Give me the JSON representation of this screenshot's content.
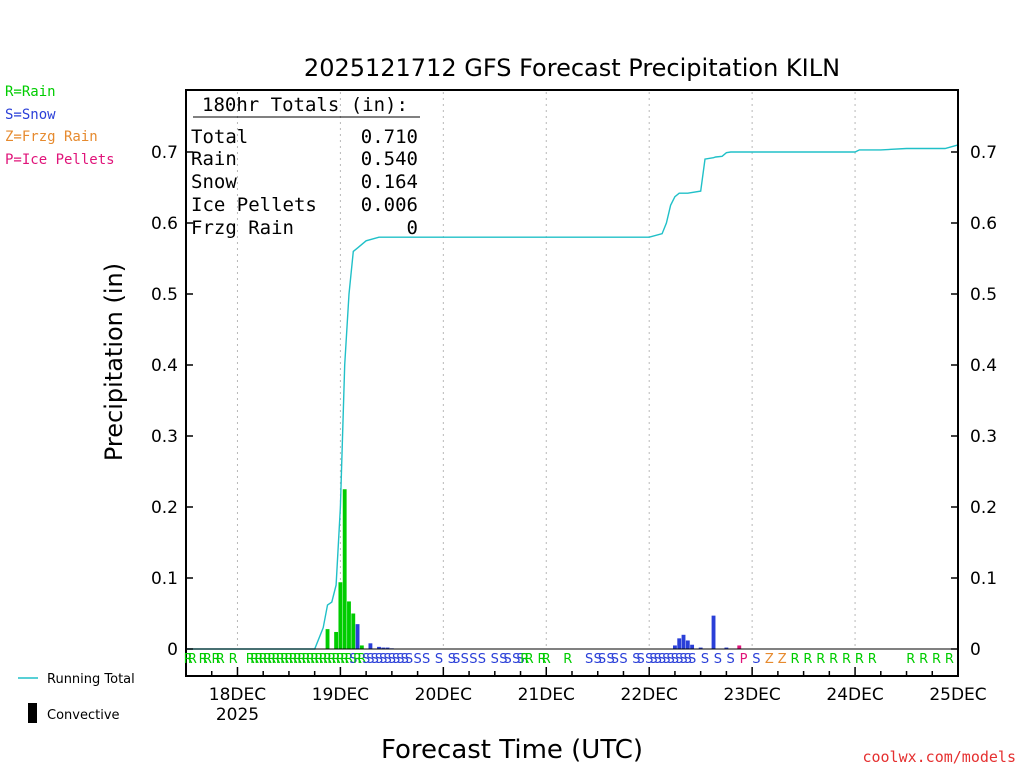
{
  "title": "2025121712 GFS Forecast Precipitation KILN",
  "credit": "coolwx.com/models",
  "legend": {
    "types": [
      {
        "text": "R=Rain",
        "color": "#00cc00"
      },
      {
        "text": "S=Snow",
        "color": "#2a3fd8"
      },
      {
        "text": "Z=Frzg Rain",
        "color": "#e68a2e"
      },
      {
        "text": "P=Ice Pellets",
        "color": "#e0147a"
      }
    ],
    "running_total": "Running Total",
    "convective": "Convective"
  },
  "totals_box": {
    "header": "180hr Totals (in):",
    "rows": [
      {
        "label": "Total",
        "value": "0.710"
      },
      {
        "label": "Rain",
        "value": "0.540"
      },
      {
        "label": "Snow",
        "value": "0.164"
      },
      {
        "label": "Ice Pellets",
        "value": "0.006"
      },
      {
        "label": "Frzg Rain",
        "value": "0"
      }
    ]
  },
  "colors": {
    "rain": "#00cc00",
    "snow": "#2a3fd8",
    "zr": "#e68a2e",
    "pl": "#e0147a",
    "total": "#20c0c8"
  },
  "chart_data": {
    "type": "bar",
    "title": "2025121712 GFS Forecast Precipitation KILN",
    "xlabel": "Forecast Time (UTC)",
    "ylabel": "Precipitation (in)",
    "ylim": [
      0,
      0.78
    ],
    "xlim_hours": [
      -12,
      168
    ],
    "yticks": [
      "0",
      "0.1",
      "0.2",
      "0.3",
      "0.4",
      "0.5",
      "0.6",
      "0.7"
    ],
    "xticks": [
      {
        "hour": 0,
        "label": "18DEC",
        "sub": "2025"
      },
      {
        "hour": 24,
        "label": "19DEC"
      },
      {
        "hour": 48,
        "label": "20DEC"
      },
      {
        "hour": 72,
        "label": "21DEC"
      },
      {
        "hour": 96,
        "label": "22DEC"
      },
      {
        "hour": 120,
        "label": "23DEC"
      },
      {
        "hour": 144,
        "label": "24DEC"
      },
      {
        "hour": 168,
        "label": "25DEC"
      }
    ],
    "bars": [
      {
        "hour": 21,
        "value": 0.028,
        "type": "rain"
      },
      {
        "hour": 23,
        "value": 0.024,
        "type": "rain"
      },
      {
        "hour": 24,
        "value": 0.094,
        "type": "rain"
      },
      {
        "hour": 25,
        "value": 0.225,
        "type": "rain"
      },
      {
        "hour": 26,
        "value": 0.067,
        "type": "rain"
      },
      {
        "hour": 27,
        "value": 0.05,
        "type": "rain"
      },
      {
        "hour": 28,
        "value": 0.035,
        "type": "snow"
      },
      {
        "hour": 29,
        "value": 0.005,
        "type": "rain"
      },
      {
        "hour": 31,
        "value": 0.008,
        "type": "snow"
      },
      {
        "hour": 33,
        "value": 0.003,
        "type": "snow"
      },
      {
        "hour": 34,
        "value": 0.002,
        "type": "snow"
      },
      {
        "hour": 35,
        "value": 0.002,
        "type": "snow"
      },
      {
        "hour": 36,
        "value": 0.001,
        "type": "snow"
      },
      {
        "hour": 102,
        "value": 0.005,
        "type": "snow"
      },
      {
        "hour": 103,
        "value": 0.015,
        "type": "snow"
      },
      {
        "hour": 104,
        "value": 0.02,
        "type": "snow"
      },
      {
        "hour": 105,
        "value": 0.012,
        "type": "snow"
      },
      {
        "hour": 106,
        "value": 0.006,
        "type": "snow"
      },
      {
        "hour": 108,
        "value": 0.002,
        "type": "snow"
      },
      {
        "hour": 111,
        "value": 0.047,
        "type": "snow"
      },
      {
        "hour": 114,
        "value": 0.002,
        "type": "snow"
      },
      {
        "hour": 117,
        "value": 0.005,
        "type": "pl"
      }
    ],
    "running_total": {
      "hours": [
        -12,
        18,
        20,
        21,
        22,
        23,
        24,
        25,
        26,
        27,
        28,
        30,
        33,
        36,
        48,
        96,
        99,
        100,
        101,
        102,
        103,
        105,
        108,
        109,
        111,
        111.5,
        113,
        114,
        115,
        120,
        126,
        132,
        144,
        145,
        150,
        156,
        165,
        168
      ],
      "values": [
        0,
        0,
        0.03,
        0.062,
        0.066,
        0.09,
        0.2,
        0.4,
        0.5,
        0.56,
        0.565,
        0.575,
        0.58,
        0.58,
        0.58,
        0.58,
        0.585,
        0.6,
        0.625,
        0.637,
        0.642,
        0.642,
        0.645,
        0.69,
        0.692,
        0.693,
        0.694,
        0.699,
        0.7,
        0.7,
        0.7,
        0.7,
        0.7,
        0.703,
        0.703,
        0.705,
        0.705,
        0.71
      ]
    },
    "type_marks": [
      {
        "hour": -11.5,
        "t": "R"
      },
      {
        "hour": -10.5,
        "t": "R"
      },
      {
        "hour": -8,
        "t": "R"
      },
      {
        "hour": -7,
        "t": "R"
      },
      {
        "hour": -5,
        "t": "R"
      },
      {
        "hour": -4,
        "t": "R"
      },
      {
        "hour": -1,
        "t": "R"
      },
      {
        "hour": 3,
        "t": "R"
      },
      {
        "hour": 4,
        "t": "R"
      },
      {
        "hour": 5,
        "t": "R"
      },
      {
        "hour": 6,
        "t": "R"
      },
      {
        "hour": 7,
        "t": "R"
      },
      {
        "hour": 8,
        "t": "R"
      },
      {
        "hour": 9,
        "t": "R"
      },
      {
        "hour": 10,
        "t": "R"
      },
      {
        "hour": 11,
        "t": "R"
      },
      {
        "hour": 12,
        "t": "R"
      },
      {
        "hour": 13,
        "t": "R"
      },
      {
        "hour": 14,
        "t": "R"
      },
      {
        "hour": 15,
        "t": "R"
      },
      {
        "hour": 16,
        "t": "R"
      },
      {
        "hour": 17,
        "t": "R"
      },
      {
        "hour": 18,
        "t": "R"
      },
      {
        "hour": 19,
        "t": "R"
      },
      {
        "hour": 20,
        "t": "R"
      },
      {
        "hour": 21,
        "t": "R"
      },
      {
        "hour": 22,
        "t": "R"
      },
      {
        "hour": 23,
        "t": "R"
      },
      {
        "hour": 24,
        "t": "R"
      },
      {
        "hour": 25,
        "t": "R"
      },
      {
        "hour": 26,
        "t": "R"
      },
      {
        "hour": 27,
        "t": "S"
      },
      {
        "hour": 28,
        "t": "R"
      },
      {
        "hour": 29,
        "t": "R"
      },
      {
        "hour": 30,
        "t": "S"
      },
      {
        "hour": 31,
        "t": "S"
      },
      {
        "hour": 32,
        "t": "S"
      },
      {
        "hour": 33,
        "t": "S"
      },
      {
        "hour": 34,
        "t": "S"
      },
      {
        "hour": 35,
        "t": "S"
      },
      {
        "hour": 36,
        "t": "S"
      },
      {
        "hour": 37,
        "t": "S"
      },
      {
        "hour": 38,
        "t": "S"
      },
      {
        "hour": 39,
        "t": "S"
      },
      {
        "hour": 40,
        "t": "S"
      },
      {
        "hour": 42,
        "t": "S"
      },
      {
        "hour": 44,
        "t": "S"
      },
      {
        "hour": 47,
        "t": "S"
      },
      {
        "hour": 50,
        "t": "S"
      },
      {
        "hour": 51,
        "t": "S"
      },
      {
        "hour": 53,
        "t": "S"
      },
      {
        "hour": 55,
        "t": "S"
      },
      {
        "hour": 57,
        "t": "S"
      },
      {
        "hour": 60,
        "t": "S"
      },
      {
        "hour": 62,
        "t": "S"
      },
      {
        "hour": 63,
        "t": "S"
      },
      {
        "hour": 65,
        "t": "S"
      },
      {
        "hour": 66,
        "t": "S"
      },
      {
        "hour": 67,
        "t": "R"
      },
      {
        "hour": 68,
        "t": "R"
      },
      {
        "hour": 71,
        "t": "R"
      },
      {
        "hour": 72,
        "t": "R"
      },
      {
        "hour": 77,
        "t": "R"
      },
      {
        "hour": 82,
        "t": "S"
      },
      {
        "hour": 84,
        "t": "S"
      },
      {
        "hour": 85,
        "t": "S"
      },
      {
        "hour": 87,
        "t": "S"
      },
      {
        "hour": 88,
        "t": "S"
      },
      {
        "hour": 90,
        "t": "S"
      },
      {
        "hour": 93,
        "t": "S"
      },
      {
        "hour": 94,
        "t": "S"
      },
      {
        "hour": 96,
        "t": "S"
      },
      {
        "hour": 97,
        "t": "S"
      },
      {
        "hour": 98,
        "t": "S"
      },
      {
        "hour": 99,
        "t": "S"
      },
      {
        "hour": 100,
        "t": "S"
      },
      {
        "hour": 101,
        "t": "S"
      },
      {
        "hour": 102,
        "t": "S"
      },
      {
        "hour": 103,
        "t": "S"
      },
      {
        "hour": 104,
        "t": "S"
      },
      {
        "hour": 105,
        "t": "S"
      },
      {
        "hour": 106,
        "t": "S"
      },
      {
        "hour": 109,
        "t": "S"
      },
      {
        "hour": 112,
        "t": "S"
      },
      {
        "hour": 115,
        "t": "S"
      },
      {
        "hour": 118,
        "t": "P"
      },
      {
        "hour": 121,
        "t": "S"
      },
      {
        "hour": 124,
        "t": "Z"
      },
      {
        "hour": 127,
        "t": "Z"
      },
      {
        "hour": 130,
        "t": "R"
      },
      {
        "hour": 133,
        "t": "R"
      },
      {
        "hour": 136,
        "t": "R"
      },
      {
        "hour": 139,
        "t": "R"
      },
      {
        "hour": 142,
        "t": "R"
      },
      {
        "hour": 145,
        "t": "R"
      },
      {
        "hour": 148,
        "t": "R"
      },
      {
        "hour": 157,
        "t": "R"
      },
      {
        "hour": 160,
        "t": "R"
      },
      {
        "hour": 163,
        "t": "R"
      },
      {
        "hour": 166,
        "t": "R"
      }
    ]
  }
}
